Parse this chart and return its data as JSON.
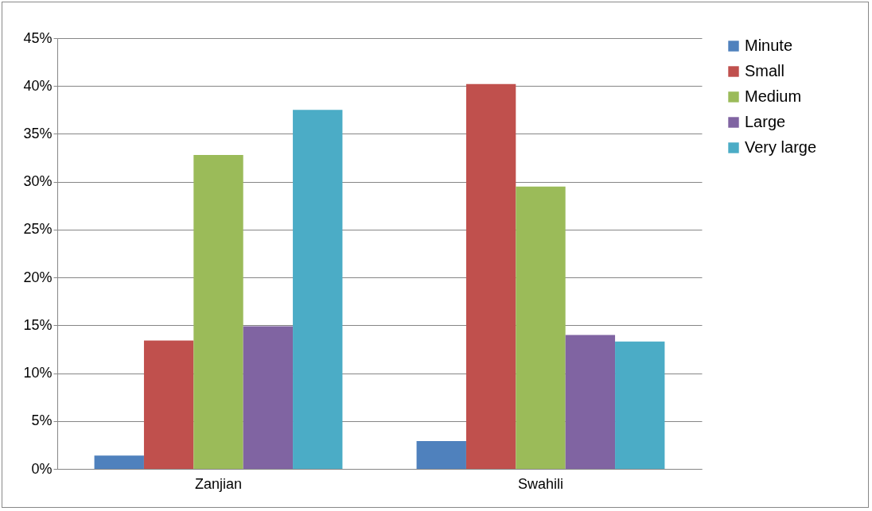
{
  "chart_data": {
    "type": "bar",
    "categories": [
      "Zanjian",
      "Swahili"
    ],
    "series": [
      {
        "name": "Minute",
        "color": "#4f81bd",
        "values": [
          1.4,
          2.9
        ]
      },
      {
        "name": "Small",
        "color": "#c0504d",
        "values": [
          13.4,
          40.2
        ]
      },
      {
        "name": "Medium",
        "color": "#9bbb59",
        "values": [
          32.8,
          29.5
        ]
      },
      {
        "name": "Large",
        "color": "#8064a2",
        "values": [
          14.9,
          14.0
        ]
      },
      {
        "name": "Very large",
        "color": "#4bacc6",
        "values": [
          37.5,
          13.3
        ]
      }
    ],
    "ylim": [
      0,
      45
    ],
    "yticks": [
      {
        "value": 0,
        "label": "0%"
      },
      {
        "value": 5,
        "label": "5%"
      },
      {
        "value": 10,
        "label": "10%"
      },
      {
        "value": 15,
        "label": "15%"
      },
      {
        "value": 20,
        "label": "20%"
      },
      {
        "value": 25,
        "label": "25%"
      },
      {
        "value": 30,
        "label": "30%"
      },
      {
        "value": 35,
        "label": "35%"
      },
      {
        "value": 40,
        "label": "40%"
      },
      {
        "value": 45,
        "label": "45%"
      }
    ],
    "grid": "y",
    "legend": "right"
  }
}
